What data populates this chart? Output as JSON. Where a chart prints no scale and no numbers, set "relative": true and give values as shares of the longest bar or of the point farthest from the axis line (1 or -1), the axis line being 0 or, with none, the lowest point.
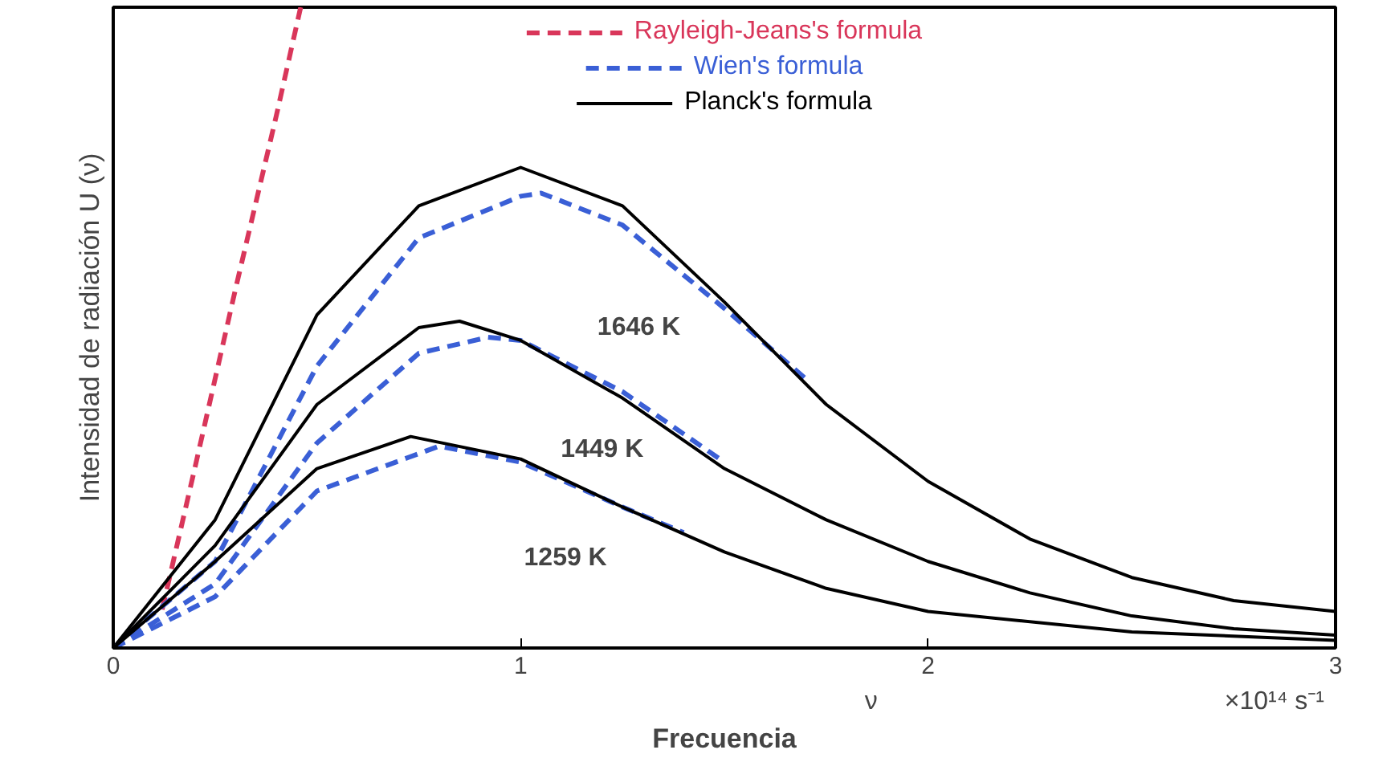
{
  "chart_data": {
    "type": "line",
    "relative": true,
    "xlabel": "Frecuencia",
    "ylabel": "Intensidad de radiación U (ν)",
    "xlim": [
      0,
      3
    ],
    "xticks": [
      0,
      1,
      2,
      3
    ],
    "legend": "top",
    "grid": false,
    "series": [
      {
        "name": "Rayleigh-Jeans's formula",
        "color": "#d9365a",
        "line_style": "dashed",
        "x": [
          0.12,
          0.2,
          0.3,
          0.4,
          0.46
        ],
        "values": [
          0.06,
          0.28,
          0.56,
          0.83,
          1.0
        ]
      },
      {
        "name": "Wien's formula",
        "color": "#3a5fd6",
        "line_style": "dashed",
        "x": [
          0,
          0.25,
          0.5,
          0.75,
          1.0,
          1.05,
          1.25,
          1.5,
          1.7
        ],
        "values": [
          0,
          0.135,
          0.44,
          0.64,
          0.705,
          0.71,
          0.66,
          0.53,
          0.42
        ]
      },
      {
        "name": "Planck's formula",
        "color": "#000000",
        "line_style": "solid",
        "x": [
          0,
          0.25,
          0.5,
          0.75,
          1.0,
          1.25,
          1.5,
          1.75,
          2.0,
          2.25,
          2.5,
          2.75,
          3.0
        ],
        "values": [
          0,
          0.2,
          0.52,
          0.69,
          0.75,
          0.69,
          0.54,
          0.38,
          0.26,
          0.17,
          0.11,
          0.074,
          0.057
        ]
      },
      {
        "color": "#3a5fd6",
        "line_style": "dashed",
        "x": [
          0,
          0.25,
          0.5,
          0.75,
          0.92,
          1.0,
          1.25,
          1.5
        ],
        "values": [
          0,
          0.1,
          0.32,
          0.46,
          0.485,
          0.48,
          0.4,
          0.29
        ]
      },
      {
        "color": "#000000",
        "line_style": "solid",
        "x": [
          0,
          0.25,
          0.5,
          0.75,
          0.85,
          1.0,
          1.25,
          1.5,
          1.75,
          2.0,
          2.25,
          2.5,
          2.75,
          3.0
        ],
        "values": [
          0,
          0.16,
          0.38,
          0.5,
          0.51,
          0.48,
          0.39,
          0.28,
          0.2,
          0.135,
          0.086,
          0.05,
          0.03,
          0.02
        ]
      },
      {
        "color": "#3a5fd6",
        "line_style": "dashed",
        "x": [
          0,
          0.25,
          0.5,
          0.8,
          1.0,
          1.25,
          1.4
        ],
        "values": [
          0,
          0.08,
          0.245,
          0.315,
          0.29,
          0.22,
          0.18
        ]
      },
      {
        "color": "#000000",
        "line_style": "solid",
        "x": [
          0,
          0.25,
          0.5,
          0.73,
          1.0,
          1.25,
          1.5,
          1.75,
          2.0,
          2.5,
          3.0
        ],
        "values": [
          0,
          0.135,
          0.28,
          0.33,
          0.295,
          0.22,
          0.15,
          0.093,
          0.057,
          0.025,
          0.012
        ]
      }
    ],
    "annotations": [
      "1646 K",
      "1449 K",
      "1259 K",
      "ν",
      "×10¹⁴ s⁻¹"
    ]
  }
}
